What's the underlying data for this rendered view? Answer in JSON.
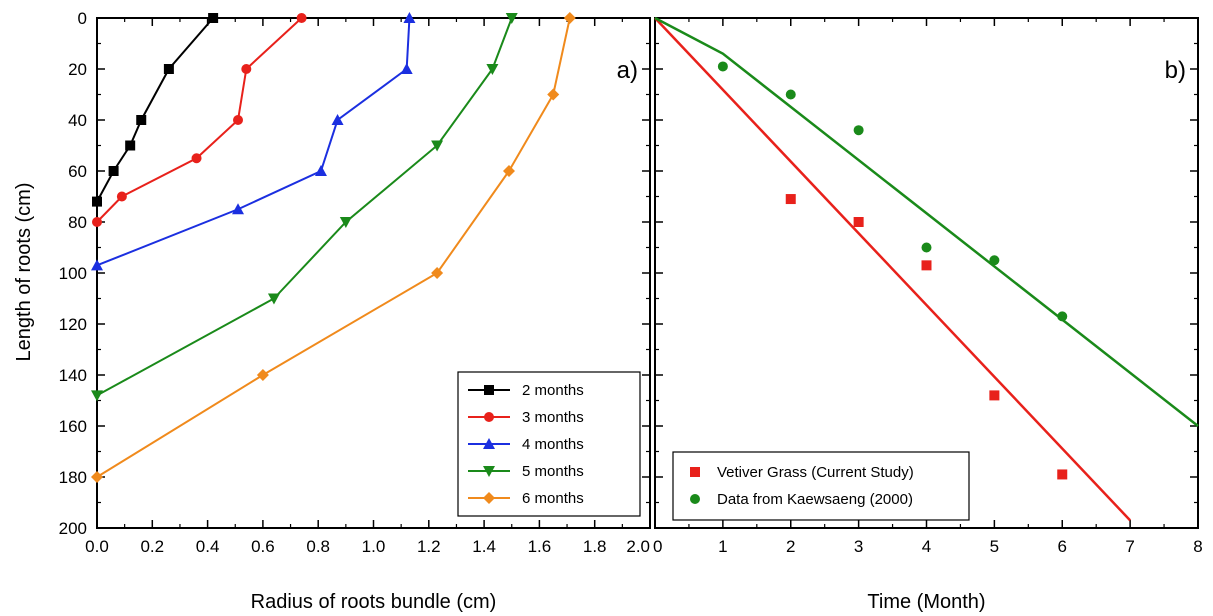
{
  "ylabel": "Length of roots (cm)",
  "colors": {
    "black": "#000000",
    "red": "#e8211b",
    "blue": "#1b2fe0",
    "green": "#1a8a1a",
    "orange": "#f08a1c"
  },
  "chart_data": [
    {
      "type": "line",
      "panel_label": "a)",
      "xlabel": "Radius of roots bundle (cm)",
      "ylabel": "Length of roots (cm)",
      "xlim": [
        0.0,
        2.0
      ],
      "ylim": [
        200,
        0
      ],
      "y_inverted": true,
      "x_ticks": [
        "0.0",
        "0.2",
        "0.4",
        "0.6",
        "0.8",
        "1.0",
        "1.2",
        "1.4",
        "1.6",
        "1.8",
        "2.0"
      ],
      "y_ticks": [
        "0",
        "20",
        "40",
        "60",
        "80",
        "100",
        "120",
        "140",
        "160",
        "180",
        "200"
      ],
      "legend_position": "bottom-right",
      "series": [
        {
          "name": "2 months",
          "color": "black",
          "marker": "square",
          "x": [
            0.42,
            0.26,
            0.16,
            0.12,
            0.06,
            0.0
          ],
          "y": [
            0,
            20,
            40,
            50,
            60,
            72
          ]
        },
        {
          "name": "3 months",
          "color": "red",
          "marker": "circle",
          "x": [
            0.74,
            0.54,
            0.51,
            0.36,
            0.09,
            0.0
          ],
          "y": [
            0,
            20,
            40,
            55,
            70,
            80
          ]
        },
        {
          "name": "4 months",
          "color": "blue",
          "marker": "triangle-up",
          "x": [
            1.13,
            1.12,
            0.87,
            0.81,
            0.51,
            0.0
          ],
          "y": [
            0,
            20,
            40,
            60,
            75,
            97
          ]
        },
        {
          "name": "5 months",
          "color": "green",
          "marker": "triangle-down",
          "x": [
            1.5,
            1.43,
            1.23,
            0.9,
            0.64,
            0.0
          ],
          "y": [
            0,
            20,
            50,
            80,
            110,
            148
          ]
        },
        {
          "name": "6 months",
          "color": "orange",
          "marker": "diamond",
          "x": [
            1.71,
            1.65,
            1.49,
            1.23,
            0.6,
            0.0
          ],
          "y": [
            0,
            30,
            60,
            100,
            140,
            180
          ]
        }
      ]
    },
    {
      "type": "scatter",
      "panel_label": "b)",
      "xlabel": "Time (Month)",
      "xlim": [
        0,
        8
      ],
      "ylim": [
        200,
        0
      ],
      "y_inverted": true,
      "x_ticks": [
        "0",
        "1",
        "2",
        "3",
        "4",
        "5",
        "6",
        "7",
        "8"
      ],
      "legend_position": "bottom-left",
      "series": [
        {
          "name": "Vetiver Grass (Current Study)",
          "color": "red",
          "marker": "square",
          "x": [
            2,
            3,
            4,
            5,
            6
          ],
          "y": [
            71,
            80,
            97,
            148,
            179
          ]
        },
        {
          "name": "Data from Kaewsaeng (2000)",
          "color": "green",
          "marker": "circle",
          "x": [
            1,
            2,
            3,
            4,
            5,
            6
          ],
          "y": [
            19,
            30,
            44,
            90,
            95,
            117
          ]
        }
      ],
      "fit_lines": [
        {
          "color": "red",
          "x": [
            0,
            7
          ],
          "y": [
            0,
            197
          ]
        },
        {
          "color": "green",
          "x": [
            0,
            1,
            8
          ],
          "y": [
            0,
            14,
            160
          ]
        }
      ]
    }
  ]
}
